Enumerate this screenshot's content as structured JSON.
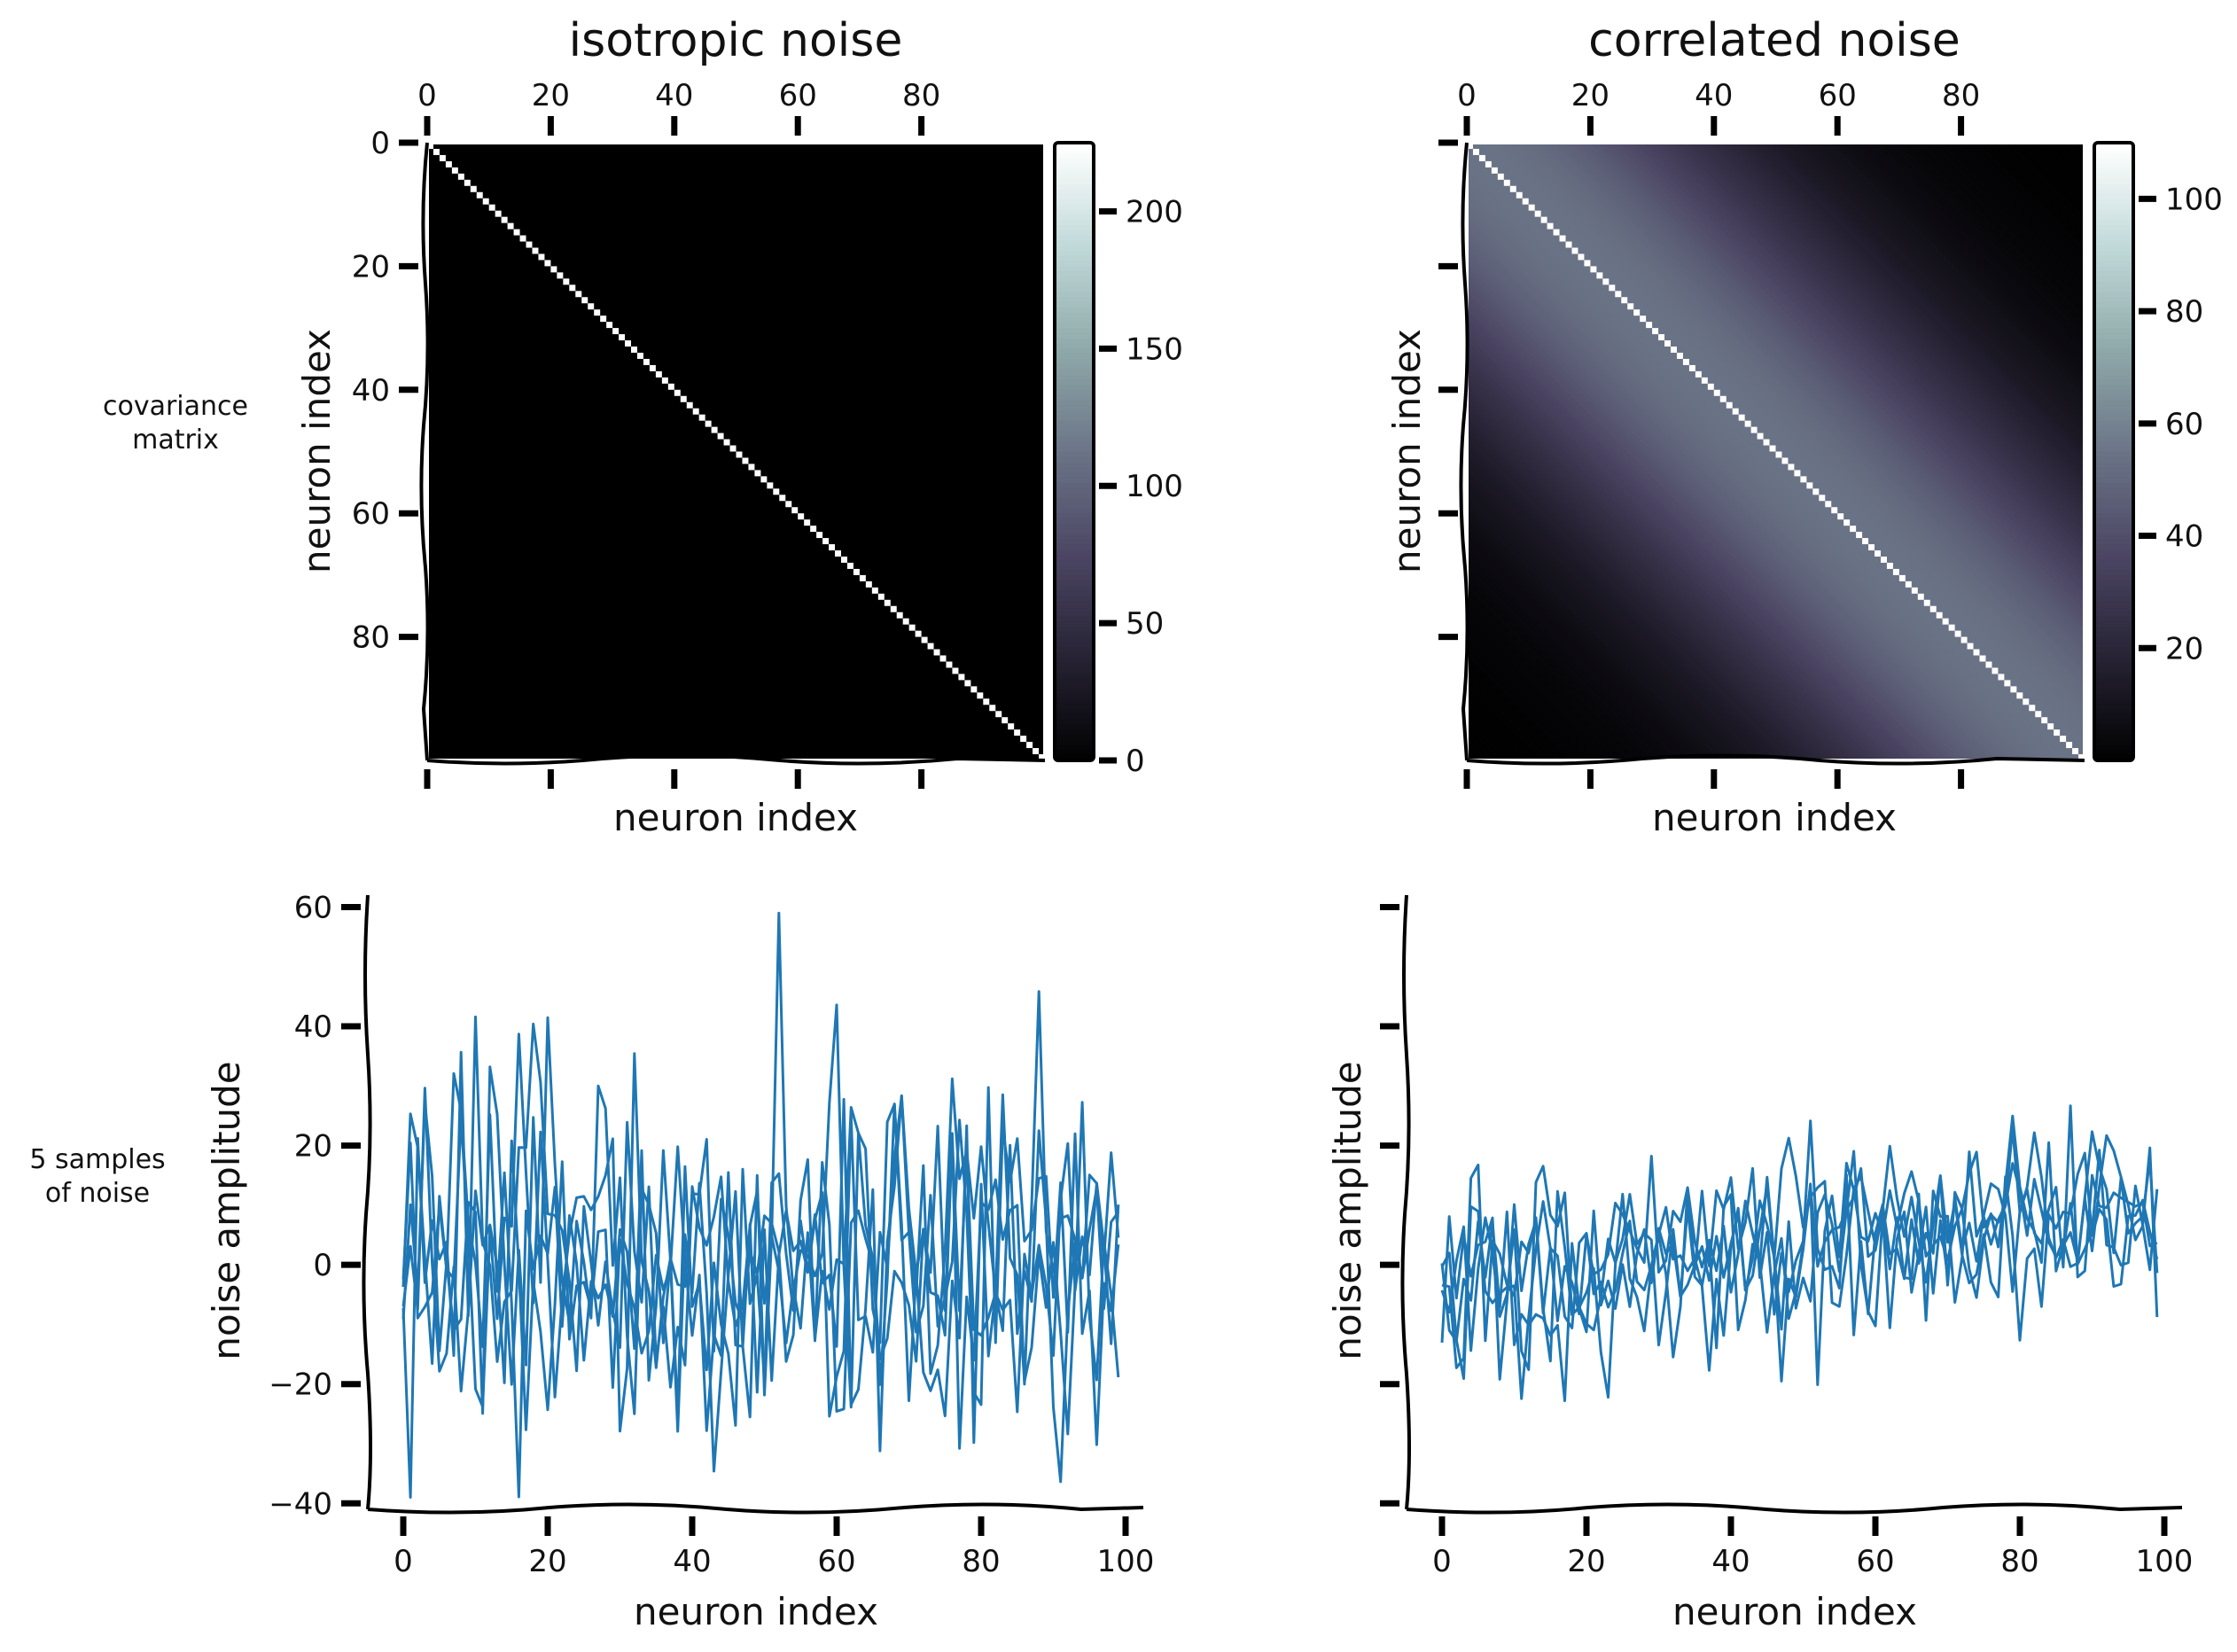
{
  "figure": {
    "row_labels": [
      "covariance\nmatrix",
      "5 samples\nof noise"
    ]
  },
  "colors": {
    "line": "#1f77b4",
    "cmap": [
      "#000000",
      "#262233",
      "#4b4563",
      "#6a7386",
      "#8ea8a9",
      "#c0d8d8",
      "#ffffff"
    ],
    "axis": "#000000"
  },
  "chart_data": [
    {
      "id": "iso_cov",
      "type": "heatmap",
      "title": "isotropic noise",
      "xlabel": "neuron index",
      "ylabel": "neuron index",
      "size": 100,
      "kind": "isotropic",
      "diag_value": 225,
      "off_value": 0,
      "xticks": [
        0,
        20,
        40,
        60,
        80
      ],
      "yticks": [
        0,
        20,
        40,
        60,
        80
      ],
      "colorbar": {
        "range": [
          0,
          225
        ],
        "ticks": [
          0,
          50,
          100,
          150,
          200
        ]
      }
    },
    {
      "id": "cor_cov",
      "type": "heatmap",
      "title": "correlated noise",
      "xlabel": "neuron index",
      "ylabel": "neuron index",
      "size": 100,
      "kind": "correlated",
      "diag_value": 110,
      "band_peak": 55,
      "length_scale": 30,
      "xticks": [
        0,
        20,
        40,
        60,
        80
      ],
      "yticks": [
        0,
        20,
        40,
        60,
        80
      ],
      "show_ytick_labels": false,
      "colorbar": {
        "range": [
          0,
          110
        ],
        "ticks": [
          20,
          40,
          60,
          80,
          100
        ]
      }
    },
    {
      "id": "iso_samples",
      "type": "line",
      "xlabel": "neuron index",
      "ylabel": "noise amplitude",
      "n_series": 5,
      "n_points": 100,
      "xlim": [
        -5,
        104
      ],
      "ylim": [
        -41,
        62
      ],
      "xticks": [
        0,
        20,
        40,
        60,
        80,
        100
      ],
      "yticks": [
        -40,
        -20,
        0,
        20,
        40,
        60
      ],
      "std": 14.5,
      "trend": [
        0,
        0
      ],
      "seed": 7
    },
    {
      "id": "cor_samples",
      "type": "line",
      "xlabel": "neuron index",
      "ylabel": "noise amplitude",
      "n_series": 5,
      "n_points": 100,
      "xlim": [
        -5,
        104
      ],
      "ylim": [
        -41,
        62
      ],
      "xticks": [
        0,
        20,
        40,
        60,
        80,
        100
      ],
      "yticks": [
        -40,
        -20,
        0,
        20,
        40,
        60
      ],
      "show_ytick_labels": false,
      "std": 7.5,
      "trend": [
        -3,
        10
      ],
      "seed": 21
    }
  ]
}
